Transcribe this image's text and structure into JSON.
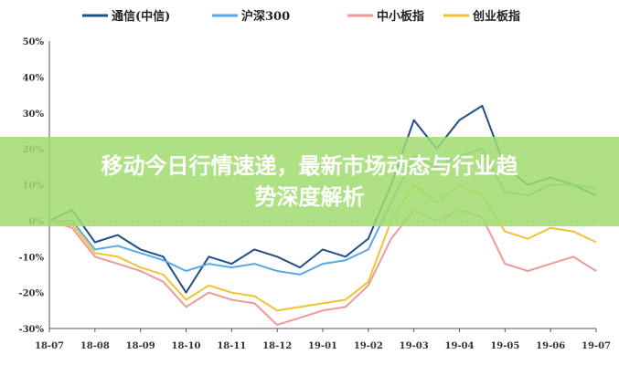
{
  "chart_data": {
    "type": "line",
    "title": "",
    "xlabel": "",
    "ylabel": "",
    "x_ticks": [
      "18-07",
      "18-08",
      "18-09",
      "18-10",
      "18-11",
      "18-12",
      "19-01",
      "19-02",
      "19-03",
      "19-04",
      "19-05",
      "19-06",
      "19-07"
    ],
    "y_ticks": [
      "50%",
      "40%",
      "30%",
      "20%",
      "10%",
      "0%",
      "-10%",
      "-20%",
      "-30%"
    ],
    "ylim": [
      -30,
      50
    ],
    "x": [
      0,
      0.5,
      1,
      1.5,
      2,
      2.5,
      3,
      3.5,
      4,
      4.5,
      5,
      5.5,
      6,
      6.5,
      7,
      7.5,
      8,
      8.5,
      9,
      9.5,
      10,
      10.5,
      11,
      11.5,
      12
    ],
    "legend_position": "top",
    "series": [
      {
        "name": "通信(中信)",
        "color": "#1f4e89",
        "values": [
          0,
          3,
          -6,
          -4,
          -8,
          -10,
          -20,
          -10,
          -12,
          -8,
          -10,
          -13,
          -8,
          -10,
          -5,
          10,
          28,
          20,
          28,
          32,
          15,
          10,
          12,
          10,
          7
        ]
      },
      {
        "name": "沪深300",
        "color": "#5aa8e6",
        "values": [
          0,
          0,
          -8,
          -7,
          -9,
          -11,
          -14,
          -12,
          -13,
          -12,
          -14,
          -15,
          -12,
          -11,
          -8,
          5,
          18,
          15,
          18,
          20,
          8,
          7,
          10,
          10,
          9
        ]
      },
      {
        "name": "中小板指",
        "color": "#ee9a9a",
        "values": [
          0,
          -2,
          -10,
          -12,
          -14,
          -17,
          -24,
          -20,
          -22,
          -23,
          -29,
          -27,
          -25,
          -24,
          -18,
          -5,
          3,
          0,
          3,
          1,
          -12,
          -14,
          -12,
          -10,
          -14
        ]
      },
      {
        "name": "创业板指",
        "color": "#f2c232",
        "values": [
          0,
          -1,
          -9,
          -10,
          -13,
          -15,
          -22,
          -18,
          -20,
          -21,
          -25,
          -24,
          -23,
          -22,
          -17,
          0,
          10,
          5,
          10,
          7,
          -3,
          -5,
          -2,
          -3,
          -6
        ]
      }
    ]
  },
  "banner": {
    "line1": "移动今日行情速递，最新市场动态与行业趋",
    "line2": "势深度解析"
  }
}
